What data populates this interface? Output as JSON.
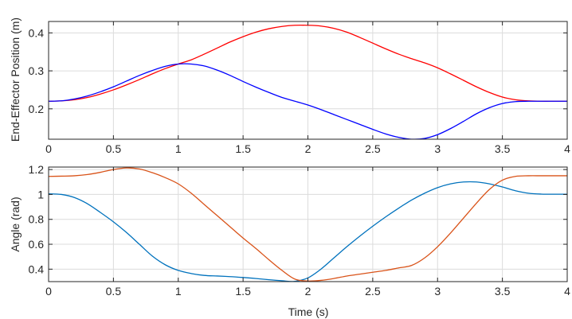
{
  "chart_data": [
    {
      "type": "line",
      "title": "",
      "xlabel": "",
      "ylabel": "End-Effector Position (m)",
      "xlim": [
        0,
        4
      ],
      "ylim": [
        0.12,
        0.43
      ],
      "xticks": [
        0,
        0.5,
        1,
        1.5,
        2,
        2.5,
        3,
        3.5,
        4
      ],
      "xtick_labels": [
        "0",
        "0.5",
        "1",
        "1.5",
        "2",
        "2.5",
        "3",
        "3.5",
        "4"
      ],
      "yticks": [
        0.2,
        0.3,
        0.4
      ],
      "ytick_labels": [
        "0.2",
        "0.3",
        "0.4"
      ],
      "grid": true,
      "series": [
        {
          "color": "#ff0000",
          "x": [
            0,
            0.1,
            0.2,
            0.3,
            0.4,
            0.5,
            0.6,
            0.7,
            0.8,
            0.9,
            1.0,
            1.1,
            1.2,
            1.3,
            1.4,
            1.5,
            1.6,
            1.7,
            1.8,
            1.9,
            2.0,
            2.1,
            2.2,
            2.3,
            2.4,
            2.5,
            2.6,
            2.7,
            2.8,
            2.9,
            3.0,
            3.1,
            3.2,
            3.3,
            3.4,
            3.5,
            3.6,
            3.7,
            3.8,
            3.9,
            4.0
          ],
          "y": [
            0.22,
            0.221,
            0.224,
            0.23,
            0.239,
            0.25,
            0.263,
            0.277,
            0.292,
            0.306,
            0.318,
            0.329,
            0.344,
            0.36,
            0.376,
            0.39,
            0.402,
            0.411,
            0.417,
            0.42,
            0.42,
            0.418,
            0.412,
            0.402,
            0.388,
            0.373,
            0.358,
            0.344,
            0.332,
            0.321,
            0.308,
            0.292,
            0.275,
            0.258,
            0.243,
            0.231,
            0.224,
            0.221,
            0.22,
            0.22,
            0.22
          ]
        },
        {
          "color": "#0000ff",
          "x": [
            0,
            0.1,
            0.2,
            0.3,
            0.4,
            0.5,
            0.6,
            0.7,
            0.8,
            0.9,
            1.0,
            1.1,
            1.2,
            1.3,
            1.4,
            1.5,
            1.6,
            1.7,
            1.8,
            1.9,
            2.0,
            2.1,
            2.2,
            2.3,
            2.4,
            2.5,
            2.6,
            2.7,
            2.8,
            2.9,
            3.0,
            3.1,
            3.2,
            3.3,
            3.4,
            3.5,
            3.6,
            3.7,
            3.8,
            3.9,
            4.0
          ],
          "y": [
            0.22,
            0.221,
            0.226,
            0.234,
            0.245,
            0.258,
            0.273,
            0.288,
            0.301,
            0.312,
            0.318,
            0.318,
            0.313,
            0.302,
            0.288,
            0.272,
            0.257,
            0.243,
            0.23,
            0.22,
            0.21,
            0.198,
            0.185,
            0.172,
            0.159,
            0.146,
            0.134,
            0.125,
            0.12,
            0.122,
            0.132,
            0.148,
            0.167,
            0.187,
            0.203,
            0.214,
            0.219,
            0.22,
            0.22,
            0.22,
            0.22
          ]
        }
      ]
    },
    {
      "type": "line",
      "title": "",
      "xlabel": "Time (s)",
      "ylabel": "Angle (rad)",
      "xlim": [
        0,
        4
      ],
      "ylim": [
        0.3,
        1.22
      ],
      "xticks": [
        0,
        0.5,
        1,
        1.5,
        2,
        2.5,
        3,
        3.5,
        4
      ],
      "xtick_labels": [
        "0",
        "0.5",
        "1",
        "1.5",
        "2",
        "2.5",
        "3",
        "3.5",
        "4"
      ],
      "yticks": [
        0.4,
        0.6,
        0.8,
        1.0,
        1.2
      ],
      "ytick_labels": [
        "0.4",
        "0.6",
        "0.8",
        "1",
        "1.2"
      ],
      "grid": true,
      "series": [
        {
          "color": "#0072bd",
          "x": [
            0,
            0.1,
            0.2,
            0.3,
            0.4,
            0.5,
            0.6,
            0.7,
            0.8,
            0.9,
            1.0,
            1.1,
            1.2,
            1.3,
            1.4,
            1.5,
            1.6,
            1.7,
            1.8,
            1.9,
            2.0,
            2.1,
            2.2,
            2.3,
            2.4,
            2.5,
            2.6,
            2.7,
            2.8,
            2.9,
            3.0,
            3.1,
            3.2,
            3.3,
            3.4,
            3.5,
            3.6,
            3.7,
            3.8,
            3.9,
            4.0
          ],
          "y": [
            1.005,
            1.0,
            0.975,
            0.925,
            0.855,
            0.78,
            0.695,
            0.6,
            0.505,
            0.435,
            0.39,
            0.365,
            0.35,
            0.345,
            0.34,
            0.333,
            0.325,
            0.315,
            0.307,
            0.302,
            0.33,
            0.4,
            0.49,
            0.58,
            0.665,
            0.745,
            0.82,
            0.89,
            0.955,
            1.01,
            1.055,
            1.085,
            1.1,
            1.1,
            1.085,
            1.06,
            1.03,
            1.01,
            1.003,
            1.002,
            1.002
          ]
        },
        {
          "color": "#d95319",
          "x": [
            0,
            0.1,
            0.2,
            0.3,
            0.4,
            0.5,
            0.6,
            0.7,
            0.8,
            0.9,
            1.0,
            1.1,
            1.2,
            1.3,
            1.4,
            1.5,
            1.6,
            1.7,
            1.8,
            1.9,
            2.0,
            2.1,
            2.2,
            2.3,
            2.4,
            2.5,
            2.6,
            2.7,
            2.8,
            2.9,
            3.0,
            3.1,
            3.2,
            3.3,
            3.4,
            3.5,
            3.6,
            3.7,
            3.8,
            3.9,
            4.0
          ],
          "y": [
            1.145,
            1.147,
            1.15,
            1.16,
            1.178,
            1.2,
            1.213,
            1.205,
            1.175,
            1.135,
            1.085,
            1.01,
            0.92,
            0.83,
            0.74,
            0.65,
            0.565,
            0.475,
            0.39,
            0.32,
            0.305,
            0.31,
            0.325,
            0.345,
            0.36,
            0.375,
            0.39,
            0.41,
            0.43,
            0.49,
            0.58,
            0.69,
            0.81,
            0.93,
            1.04,
            1.115,
            1.145,
            1.15,
            1.15,
            1.15,
            1.15
          ]
        }
      ]
    }
  ]
}
